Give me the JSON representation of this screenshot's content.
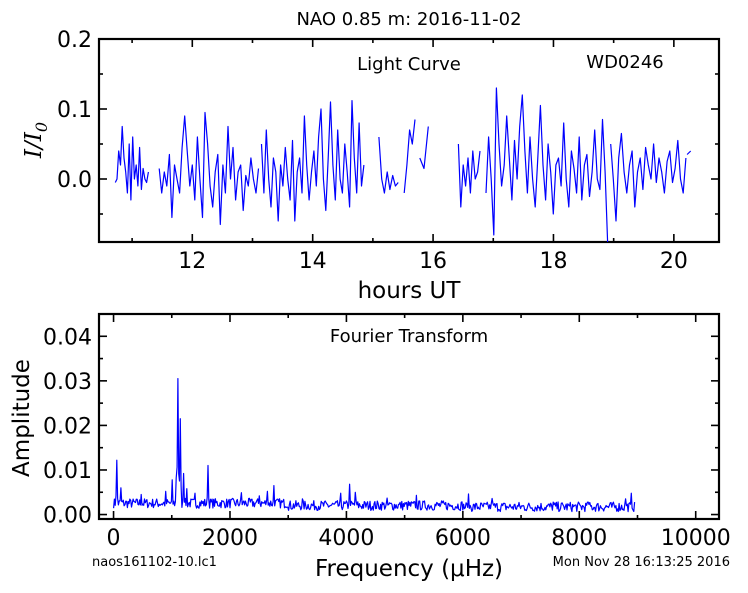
{
  "figure": {
    "title": "NAO 0.85 m:  2016-11-02",
    "footer_left": "naos161102-10.lc1",
    "footer_right": "Mon Nov 28 16:13:25 2016"
  },
  "chart_data": [
    {
      "type": "line",
      "panel": "light-curve",
      "annotation": "Light Curve",
      "object": "WD0246",
      "xlabel": "hours UT",
      "ylabel": "I/I₀",
      "xlim": [
        10.45,
        20.75
      ],
      "ylim": [
        -0.09,
        0.2
      ],
      "xticks": [
        12,
        14,
        16,
        18,
        20
      ],
      "yticks": [
        0.0,
        0.1,
        0.2
      ],
      "ytick_labels": [
        "0.0",
        "0.1",
        "0.2"
      ],
      "segments": [
        {
          "x_start": 10.72,
          "x_end": 11.27,
          "y": [
            -0.005,
            0.0,
            0.04,
            0.02,
            0.075,
            0.03,
            0.01,
            -0.02,
            0.05,
            -0.03,
            0.06,
            0.0,
            0.02,
            -0.01,
            0.045,
            -0.015,
            0.015,
            0.0,
            -0.005,
            0.01
          ]
        },
        {
          "x_start": 11.45,
          "x_end": 13.1,
          "y": [
            0.015,
            -0.02,
            0.01,
            -0.01,
            0.035,
            -0.055,
            0.02,
            0.0,
            -0.02,
            0.045,
            0.09,
            0.04,
            -0.01,
            0.02,
            -0.03,
            0.06,
            0.0,
            -0.055,
            0.095,
            0.05,
            -0.01,
            -0.04,
            0.01,
            0.035,
            -0.065,
            0.02,
            -0.02,
            0.075,
            0.0,
            0.045,
            -0.03,
            0.01,
            0.02,
            -0.045,
            0.005,
            -0.01,
            0.03,
            0.0,
            -0.02,
            0.015
          ]
        },
        {
          "x_start": 13.15,
          "x_end": 14.85,
          "y": [
            0.05,
            -0.02,
            0.07,
            0.0,
            -0.04,
            0.03,
            0.01,
            -0.06,
            0.02,
            -0.01,
            0.045,
            0.0,
            -0.03,
            0.055,
            -0.06,
            0.01,
            0.03,
            -0.02,
            0.09,
            0.02,
            -0.03,
            0.01,
            0.04,
            -0.01,
            0.06,
            0.1,
            0.0,
            -0.045,
            0.03,
            0.11,
            0.02,
            -0.03,
            0.07,
            0.0,
            -0.02,
            0.05,
            0.01,
            -0.04,
            0.112,
            0.03,
            -0.02,
            0.08,
            -0.01,
            0.02
          ]
        },
        {
          "x_start": 15.1,
          "x_end": 15.42,
          "y": [
            0.06,
            0.0,
            -0.02,
            0.01,
            -0.015,
            0.005,
            -0.01,
            -0.005
          ]
        },
        {
          "x_start": 15.52,
          "x_end": 15.7,
          "y": [
            -0.02,
            0.02,
            0.07,
            0.05,
            0.085
          ]
        },
        {
          "x_start": 15.78,
          "x_end": 15.92,
          "y": [
            0.03,
            0.015,
            0.075
          ]
        },
        {
          "x_start": 16.42,
          "x_end": 16.78,
          "y": [
            0.05,
            -0.04,
            0.02,
            -0.01,
            0.03,
            -0.02,
            0.04,
            0.0,
            0.01,
            0.04
          ]
        },
        {
          "x_start": 16.88,
          "x_end": 18.9,
          "y": [
            -0.02,
            0.06,
            0.0,
            -0.08,
            0.13,
            0.05,
            -0.01,
            0.02,
            0.09,
            0.03,
            -0.03,
            0.055,
            0.0,
            0.075,
            0.12,
            0.04,
            -0.02,
            0.06,
            0.0,
            -0.04,
            0.03,
            0.105,
            0.02,
            -0.03,
            0.05,
            0.01,
            -0.05,
            0.02,
            0.03,
            -0.01,
            0.08,
            0.0,
            -0.04,
            0.04,
            0.015,
            -0.02,
            0.06,
            -0.03,
            0.02,
            0.035,
            -0.025,
            0.01,
            0.07,
            0.0,
            -0.015,
            0.085,
            0.01,
            -0.09
          ]
        },
        {
          "x_start": 18.95,
          "x_end": 20.2,
          "y": [
            0.05,
            0.0,
            -0.06,
            0.03,
            0.065,
            0.01,
            -0.02,
            0.02,
            0.04,
            -0.04,
            0.01,
            0.03,
            -0.015,
            0.045,
            0.02,
            0.0,
            0.05,
            -0.005,
            0.03,
            0.01,
            -0.02,
            0.025,
            0.04,
            -0.005,
            0.015,
            0.055,
            0.0,
            -0.02,
            0.03
          ]
        },
        {
          "x_start": 20.22,
          "x_end": 20.28,
          "y": [
            0.035,
            0.04
          ]
        }
      ]
    },
    {
      "type": "line",
      "panel": "fourier-transform",
      "annotation": "Fourier Transform",
      "xlabel": "Frequency (μHz)",
      "ylabel": "Amplitude",
      "xlim": [
        -250,
        10400
      ],
      "ylim": [
        -0.001,
        0.045
      ],
      "xticks": [
        0,
        2000,
        4000,
        6000,
        8000,
        10000
      ],
      "yticks": [
        0.0,
        0.01,
        0.02,
        0.03,
        0.04
      ],
      "ytick_labels": [
        "0.00",
        "0.01",
        "0.02",
        "0.03",
        "0.04"
      ],
      "x_start": 0,
      "x_end": 8950,
      "peaks": [
        {
          "x": 60,
          "y": 0.0122
        },
        {
          "x": 120,
          "y": 0.006
        },
        {
          "x": 480,
          "y": 0.0045
        },
        {
          "x": 900,
          "y": 0.0052
        },
        {
          "x": 1000,
          "y": 0.0078
        },
        {
          "x": 1070,
          "y": 0.0082
        },
        {
          "x": 1110,
          "y": 0.0305
        },
        {
          "x": 1150,
          "y": 0.0215
        },
        {
          "x": 1200,
          "y": 0.0092
        },
        {
          "x": 1260,
          "y": 0.0058
        },
        {
          "x": 1400,
          "y": 0.0048
        },
        {
          "x": 1620,
          "y": 0.011
        },
        {
          "x": 2200,
          "y": 0.0049
        },
        {
          "x": 2500,
          "y": 0.0042
        },
        {
          "x": 2650,
          "y": 0.0052
        },
        {
          "x": 2760,
          "y": 0.0065
        },
        {
          "x": 3250,
          "y": 0.0035
        },
        {
          "x": 3900,
          "y": 0.0048
        },
        {
          "x": 4050,
          "y": 0.0068
        },
        {
          "x": 4150,
          "y": 0.005
        },
        {
          "x": 4700,
          "y": 0.0037
        },
        {
          "x": 5200,
          "y": 0.0043
        },
        {
          "x": 6100,
          "y": 0.0046
        },
        {
          "x": 6500,
          "y": 0.0036
        },
        {
          "x": 7550,
          "y": 0.0028
        },
        {
          "x": 8150,
          "y": 0.0028
        },
        {
          "x": 8800,
          "y": 0.0035
        },
        {
          "x": 8900,
          "y": 0.0048
        }
      ]
    }
  ]
}
